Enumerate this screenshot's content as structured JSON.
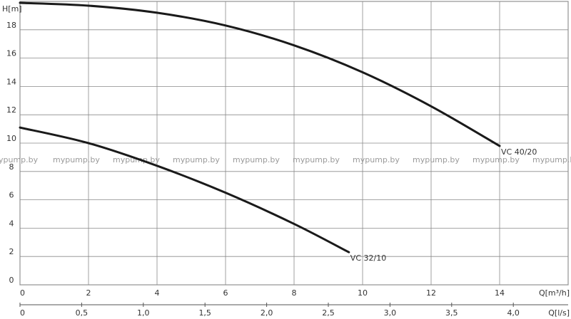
{
  "chart_data": {
    "type": "line",
    "y_unit_label": "H[m]",
    "x_unit_label_m3h": "Q[m³/h]",
    "x_unit_label_ls": "Q[l/s]",
    "y_ticks": [
      "0",
      "2",
      "4",
      "6",
      "8",
      "10",
      "12",
      "14",
      "16",
      "18"
    ],
    "x_ticks_m3h": [
      "0",
      "2",
      "4",
      "6",
      "8",
      "10",
      "12",
      "14"
    ],
    "x_ticks_ls": [
      "0",
      "0,5",
      "1,0",
      "1,5",
      "2,0",
      "2,5",
      "3,0",
      "3,5",
      "4,0"
    ],
    "xlim_m3h": [
      0,
      16
    ],
    "ylim": [
      0,
      20
    ],
    "grid": true,
    "series": [
      {
        "name": "VC 40/20",
        "x": [
          0,
          2,
          4,
          6,
          8,
          10,
          12,
          14
        ],
        "y": [
          19.9,
          19.7,
          19.2,
          18.3,
          16.9,
          15.0,
          12.6,
          9.8
        ]
      },
      {
        "name": "VC 32/10",
        "x": [
          0,
          2,
          4,
          6,
          8,
          9.6
        ],
        "y": [
          11.1,
          10.0,
          8.4,
          6.5,
          4.3,
          2.3
        ]
      }
    ],
    "watermarks": [
      "ypump.by",
      "mypump.by",
      "mypump.by",
      "mypump.by",
      "mypump.by",
      "mypump.by",
      "mypump.by",
      "mypump.by",
      "mypump.by",
      "mypump.by"
    ]
  }
}
